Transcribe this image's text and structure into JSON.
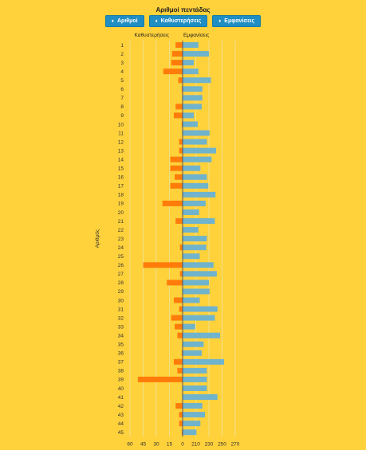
{
  "title": "Αριθμοί πεντάδας",
  "buttons": [
    {
      "icon": "sort-icon",
      "label": "Αριθμοί"
    },
    {
      "icon": "sort-icon",
      "label": "Καθυστερήσεις"
    },
    {
      "icon": "sort-icon",
      "label": "Εμφανίσεις"
    }
  ],
  "colors": {
    "background": "#ffd13b",
    "delays": "#ff7c0a",
    "appearances": "#6fb3cc",
    "grid": "#f0e08f",
    "button": "#1f8ec3"
  },
  "chart_data": {
    "type": "bar",
    "orientation": "horizontal-diverging",
    "ylabel": "Αριθμός",
    "categories": [
      "1",
      "2",
      "3",
      "4",
      "5",
      "6",
      "7",
      "8",
      "9",
      "10",
      "11",
      "12",
      "13",
      "14",
      "15",
      "16",
      "17",
      "18",
      "19",
      "20",
      "21",
      "22",
      "23",
      "24",
      "25",
      "26",
      "27",
      "28",
      "29",
      "30",
      "31",
      "32",
      "33",
      "34",
      "35",
      "36",
      "37",
      "38",
      "39",
      "40",
      "41",
      "42",
      "43",
      "44",
      "45"
    ],
    "series": [
      {
        "name": "Καθυστερήσεις",
        "values": [
          8,
          12,
          13,
          22,
          5,
          1,
          0,
          8,
          10,
          1,
          0,
          4,
          4,
          14,
          14,
          9,
          14,
          0,
          23,
          0,
          8,
          0,
          0,
          3,
          0,
          45,
          3,
          18,
          0,
          10,
          4,
          13,
          9,
          6,
          0,
          1,
          10,
          6,
          51,
          0,
          0,
          8,
          4,
          4,
          1
        ]
      },
      {
        "name": "Εμφανίσεις",
        "values": [
          214,
          230,
          207,
          214,
          233,
          220,
          220,
          219,
          207,
          213,
          231,
          227,
          241,
          234,
          217,
          227,
          229,
          240,
          225,
          215,
          239,
          214,
          227,
          226,
          216,
          237,
          242,
          230,
          231,
          216,
          243,
          239,
          209,
          247,
          222,
          219,
          253,
          227,
          227,
          227,
          243,
          220,
          224,
          217,
          211
        ]
      }
    ],
    "x_ticks": [
      "60",
      "45",
      "30",
      "15",
      "0",
      "210",
      "230",
      "250",
      "270"
    ],
    "left_range": [
      0,
      60
    ],
    "right_range": [
      190,
      270
    ],
    "grid": true
  }
}
